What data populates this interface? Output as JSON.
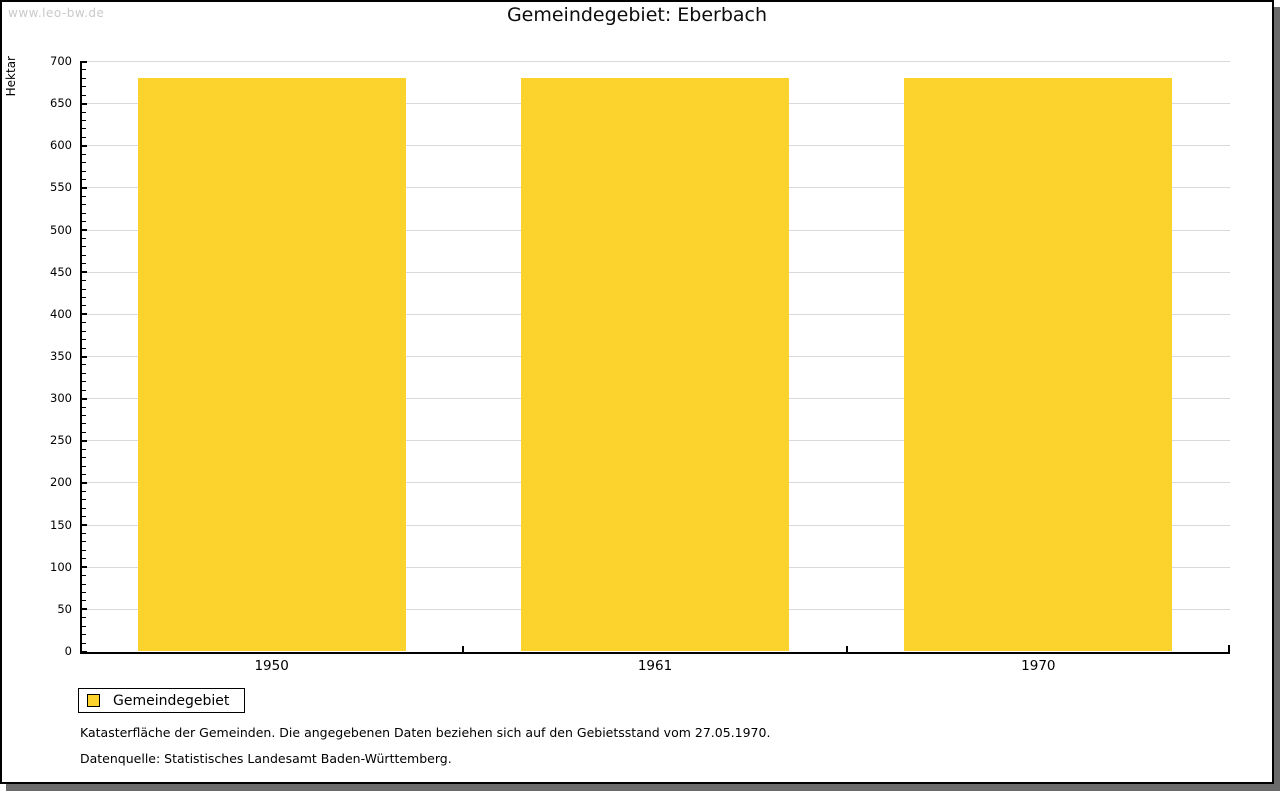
{
  "watermark": "www.leo-bw.de",
  "title": "Gemeindegebiet: Eberbach",
  "chart_data": {
    "type": "bar",
    "categories": [
      "1950",
      "1961",
      "1970"
    ],
    "series": [
      {
        "name": "Gemeindegebiet",
        "values": [
          680,
          680,
          680
        ]
      }
    ],
    "title": "Gemeindegebiet: Eberbach",
    "xlabel": "",
    "ylabel": "Hektar",
    "ylim": [
      0,
      700
    ],
    "y_major_ticks": [
      0,
      50,
      100,
      150,
      200,
      250,
      300,
      350,
      400,
      450,
      500,
      550,
      600,
      650,
      700
    ],
    "y_minor_step": 10,
    "grid": "horizontal-major-only",
    "legend_position": "bottom-left"
  },
  "legend": {
    "label": "Gemeindegebiet"
  },
  "footnotes": [
    "Katasterfläche der Gemeinden. Die angegebenen Daten beziehen sich auf den Gebietsstand vom 27.05.1970.",
    "Datenquelle: Statistisches Landesamt Baden-Württemberg."
  ],
  "colors": {
    "bar": "#FCD32D",
    "grid": "#D9D9D9",
    "axis": "#000000",
    "watermark": "#CACACA",
    "frame_shadow": "#6B6B6B"
  }
}
